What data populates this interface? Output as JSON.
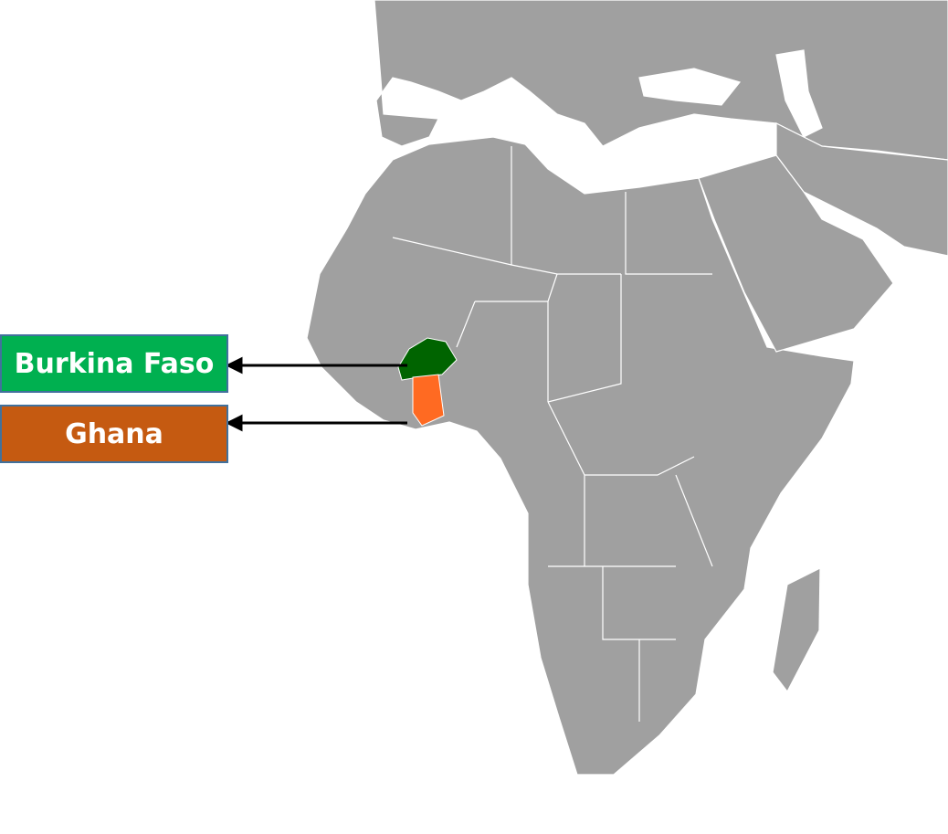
{
  "labels": [
    {
      "country": "Burkina Faso",
      "color": "#00b050",
      "highlight_color": "#006400"
    },
    {
      "country": "Ghana",
      "color": "#c55a11",
      "highlight_color": "#ff6a22"
    }
  ],
  "colors": {
    "land": "#a0a0a0",
    "border": "#ffffff",
    "water": "#ffffff"
  }
}
